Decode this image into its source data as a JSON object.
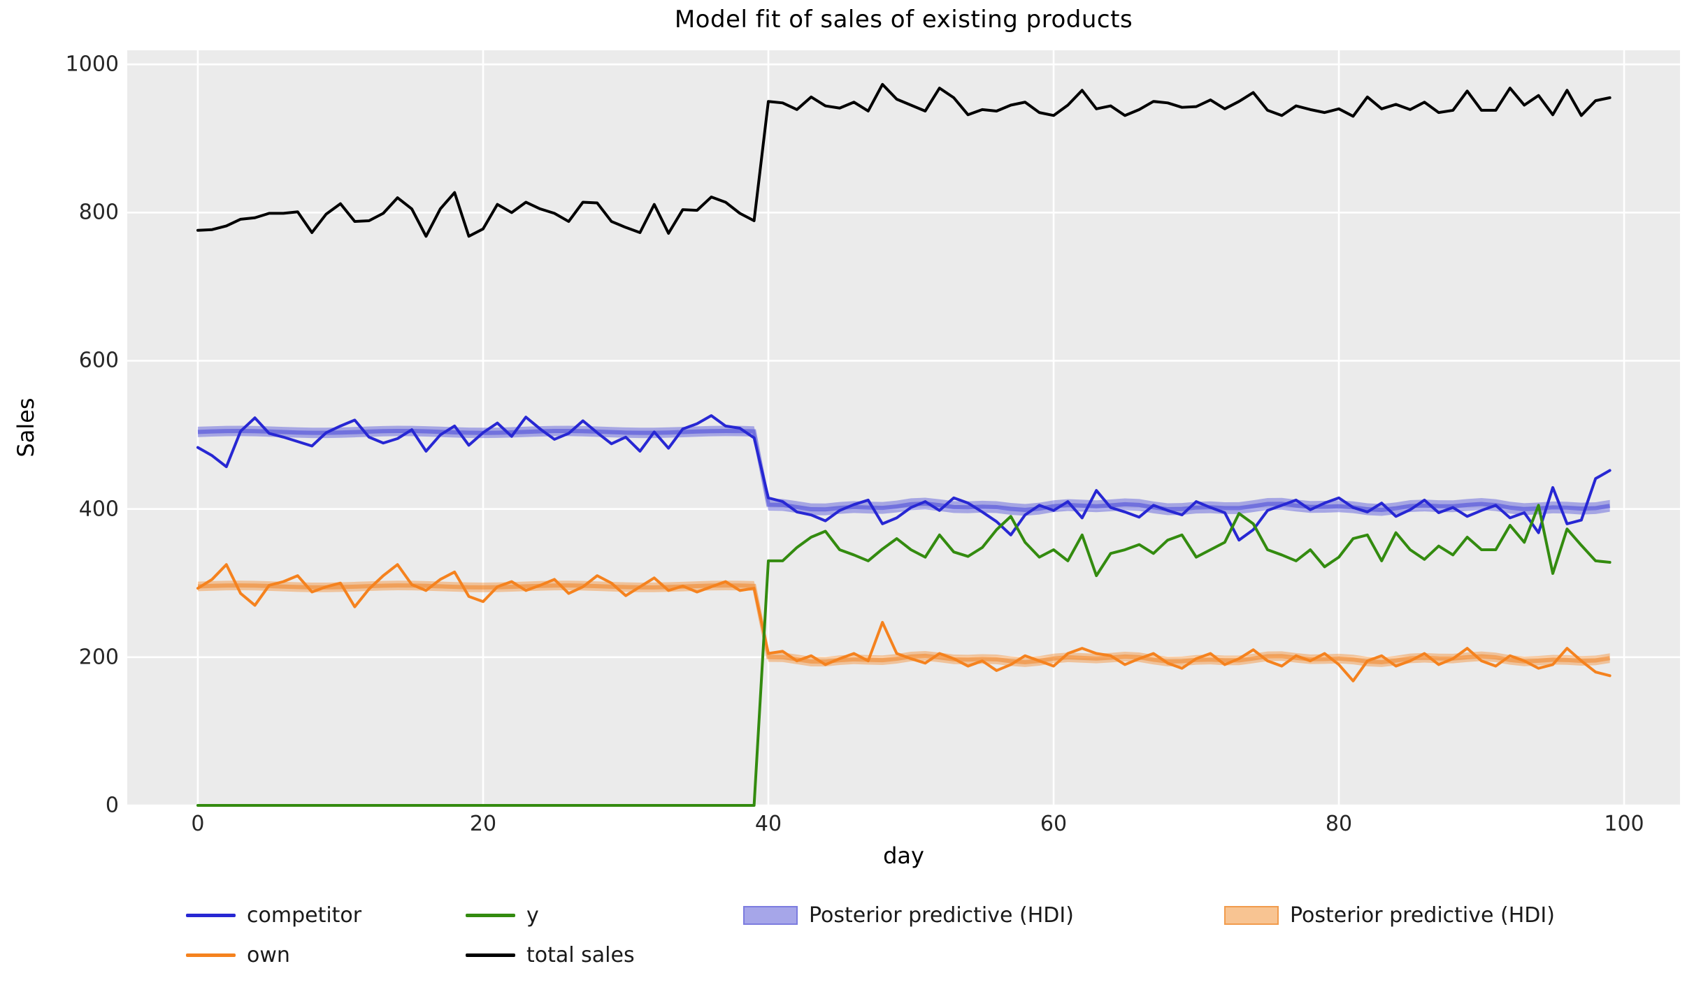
{
  "title": "Model fit of sales of existing products",
  "axes": {
    "xlabel": "day",
    "ylabel": "Sales",
    "background_color": "#ebebeb",
    "grid_color": "#ffffff"
  },
  "chart_data": {
    "type": "line",
    "title": "Model fit of sales of existing products",
    "xlabel": "day",
    "ylabel": "Sales",
    "grid": true,
    "legend_position": "below",
    "xlim": [
      -4.95,
      103.92
    ],
    "ylim": [
      0,
      1019
    ],
    "x_ticks": [
      0,
      20,
      40,
      60,
      80,
      100
    ],
    "y_ticks": [
      0,
      200,
      400,
      600,
      800,
      1000
    ],
    "days": [
      0,
      1,
      2,
      3,
      4,
      5,
      6,
      7,
      8,
      9,
      10,
      11,
      12,
      13,
      14,
      15,
      16,
      17,
      18,
      19,
      20,
      21,
      22,
      23,
      24,
      25,
      26,
      27,
      28,
      29,
      30,
      31,
      32,
      33,
      34,
      35,
      36,
      37,
      38,
      39,
      40,
      41,
      42,
      43,
      44,
      45,
      46,
      47,
      48,
      49,
      50,
      51,
      52,
      53,
      54,
      55,
      56,
      57,
      58,
      59,
      60,
      61,
      62,
      63,
      64,
      65,
      66,
      67,
      68,
      69,
      70,
      71,
      72,
      73,
      74,
      75,
      76,
      77,
      78,
      79,
      80,
      81,
      82,
      83,
      84,
      85,
      86,
      87,
      88,
      89,
      90,
      91,
      92,
      93,
      94,
      95,
      96,
      97,
      98,
      99
    ],
    "series": [
      {
        "name": "competitor",
        "color": "#2727d3",
        "values": [
          483,
          472,
          457,
          505,
          523,
          502,
          497,
          491,
          485,
          503,
          512,
          520,
          497,
          489,
          495,
          507,
          478,
          500,
          512,
          486,
          503,
          516,
          498,
          524,
          508,
          494,
          502,
          519,
          503,
          488,
          497,
          478,
          504,
          482,
          508,
          515,
          526,
          512,
          509,
          496,
          415,
          410,
          396,
          392,
          384,
          398,
          406,
          412,
          380,
          388,
          402,
          410,
          398,
          415,
          408,
          396,
          383,
          365,
          392,
          405,
          398,
          410,
          388,
          425,
          402,
          396,
          389,
          405,
          398,
          392,
          410,
          402,
          395,
          358,
          372,
          398,
          405,
          412,
          399,
          408,
          415,
          402,
          396,
          408,
          390,
          399,
          412,
          395,
          402,
          390,
          398,
          405,
          388,
          395,
          368,
          429,
          380,
          385,
          441,
          452
        ]
      },
      {
        "name": "own",
        "color": "#f5821e",
        "values": [
          293,
          305,
          325,
          286,
          270,
          297,
          302,
          310,
          288,
          295,
          300,
          268,
          292,
          310,
          325,
          298,
          290,
          305,
          315,
          282,
          275,
          295,
          302,
          290,
          297,
          305,
          286,
          295,
          310,
          300,
          283,
          295,
          307,
          290,
          296,
          288,
          295,
          302,
          290,
          293,
          205,
          208,
          195,
          202,
          190,
          198,
          205,
          195,
          247,
          205,
          198,
          192,
          205,
          198,
          188,
          195,
          182,
          190,
          202,
          195,
          188,
          205,
          212,
          205,
          202,
          190,
          198,
          205,
          192,
          185,
          198,
          205,
          190,
          198,
          210,
          195,
          188,
          202,
          195,
          205,
          190,
          168,
          195,
          202,
          188,
          195,
          205,
          190,
          198,
          212,
          195,
          188,
          202,
          195,
          185,
          190,
          212,
          195,
          180,
          175
        ]
      },
      {
        "name": "y",
        "color": "#338b0f",
        "values": [
          0,
          0,
          0,
          0,
          0,
          0,
          0,
          0,
          0,
          0,
          0,
          0,
          0,
          0,
          0,
          0,
          0,
          0,
          0,
          0,
          0,
          0,
          0,
          0,
          0,
          0,
          0,
          0,
          0,
          0,
          0,
          0,
          0,
          0,
          0,
          0,
          0,
          0,
          0,
          0,
          330,
          330,
          348,
          362,
          370,
          345,
          338,
          330,
          346,
          360,
          345,
          335,
          365,
          342,
          336,
          348,
          372,
          390,
          355,
          335,
          345,
          330,
          365,
          310,
          340,
          345,
          352,
          340,
          358,
          365,
          335,
          345,
          355,
          394,
          380,
          345,
          338,
          330,
          345,
          322,
          335,
          360,
          365,
          330,
          368,
          345,
          332,
          350,
          338,
          362,
          345,
          345,
          378,
          355,
          405,
          313,
          373,
          351,
          330,
          328
        ]
      },
      {
        "name": "total sales",
        "color": "#000000",
        "values": [
          776,
          777,
          782,
          791,
          793,
          799,
          799,
          801,
          773,
          798,
          812,
          788,
          789,
          799,
          820,
          805,
          768,
          805,
          827,
          768,
          778,
          811,
          800,
          814,
          805,
          799,
          788,
          814,
          813,
          788,
          780,
          773,
          811,
          772,
          804,
          803,
          821,
          814,
          799,
          789,
          950,
          948,
          939,
          956,
          944,
          941,
          949,
          937,
          973,
          953,
          945,
          937,
          968,
          955,
          932,
          939,
          937,
          945,
          949,
          935,
          931,
          945,
          965,
          940,
          944,
          931,
          939,
          950,
          948,
          942,
          943,
          952,
          940,
          950,
          962,
          938,
          931,
          944,
          939,
          935,
          940,
          930,
          956,
          940,
          946,
          939,
          949,
          935,
          938,
          964,
          938,
          938,
          968,
          945,
          958,
          932,
          965,
          931,
          951,
          955
        ]
      }
    ],
    "hdi_bands": [
      {
        "name": "Posterior predictive (HDI)",
        "fill": "rgba(72,72,218,0.42)",
        "mean_line": "rgba(60,60,215,0.50)",
        "segments": [
          {
            "from_day": 0,
            "to_day": 39,
            "lower": 497,
            "upper": 511
          },
          {
            "from_day": 40,
            "to_day": 99,
            "lower": 395,
            "upper": 411
          }
        ]
      },
      {
        "name": "Posterior predictive (HDI)",
        "fill": "rgba(245,133,32,0.40)",
        "mean_line": "rgba(242,125,25,0.50)",
        "segments": [
          {
            "from_day": 0,
            "to_day": 39,
            "lower": 289,
            "upper": 302
          },
          {
            "from_day": 40,
            "to_day": 99,
            "lower": 191,
            "upper": 204
          }
        ]
      }
    ]
  },
  "legend": {
    "columns": [
      {
        "items": [
          {
            "label": "competitor",
            "swatch": "line",
            "color": "#2727d3"
          },
          {
            "label": "own",
            "swatch": "line",
            "color": "#f5821e"
          }
        ]
      },
      {
        "items": [
          {
            "label": "y",
            "swatch": "line",
            "color": "#338b0f"
          },
          {
            "label": "total sales",
            "swatch": "line",
            "color": "#000000"
          }
        ]
      },
      {
        "items": [
          {
            "label": "Posterior predictive (HDI)",
            "swatch": "patch",
            "color": "#a6a6e9",
            "border": "#7c7cdf"
          }
        ]
      },
      {
        "items": [
          {
            "label": "Posterior predictive (HDI)",
            "swatch": "patch",
            "color": "#f8c492",
            "border": "#f19b4c"
          }
        ]
      }
    ]
  }
}
